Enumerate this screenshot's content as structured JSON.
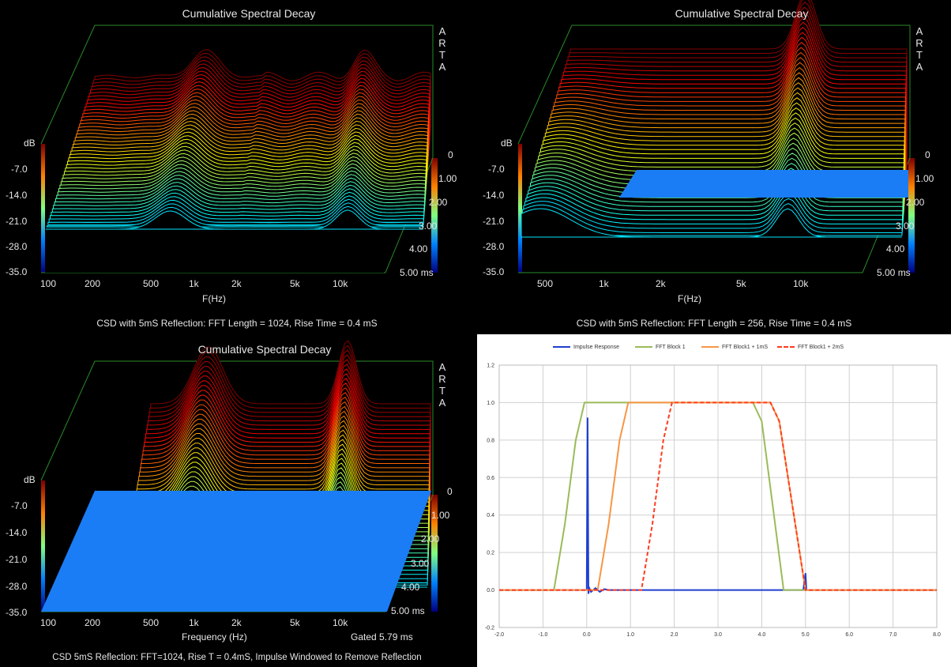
{
  "csd_title": "Cumulative Spectral Decay",
  "arta": [
    "A",
    "R",
    "T",
    "A"
  ],
  "db_label": "dB",
  "db_ticks": [
    "-7.0",
    "-14.0",
    "-21.0",
    "-28.0",
    "-35.0"
  ],
  "time_ticks": [
    "0",
    "1.00",
    "2.00",
    "3.00",
    "4.00",
    "5.00 ms"
  ],
  "panels": [
    {
      "caption": "CSD with 5mS Reflection: FFT Length = 1024, Rise Time = 0.4 mS",
      "xlabel": "F(Hz)",
      "freq_ticks": [
        "100",
        "200",
        "500",
        "1k",
        "2k",
        "5k",
        "10k"
      ]
    },
    {
      "caption": "CSD with 5mS Reflection: FFT Length = 256, Rise Time = 0.4 mS",
      "xlabel": "F(Hz)",
      "freq_ticks": [
        "500",
        "1k",
        "2k",
        "5k",
        "10k"
      ]
    },
    {
      "caption": "CSD 5mS Reflection: FFT=1024, Rise T = 0.4mS, Impulse Windowed to Remove Reflection",
      "xlabel": "Frequency (Hz)",
      "gated": "Gated 5.79 ms",
      "freq_ticks": [
        "100",
        "200",
        "500",
        "1k",
        "2k",
        "5k",
        "10k"
      ]
    }
  ],
  "chart_data": [
    {
      "type": "area",
      "title": "Cumulative Spectral Decay",
      "xlabel": "F(Hz)",
      "zlabel": "dB",
      "zlim": [
        -35,
        0
      ],
      "ylim_ms": [
        0,
        5
      ],
      "note": "3D waterfall"
    },
    {
      "type": "area",
      "title": "Cumulative Spectral Decay",
      "xlabel": "F(Hz)",
      "zlabel": "dB",
      "zlim": [
        -35,
        0
      ],
      "ylim_ms": [
        0,
        5
      ],
      "note": "3D waterfall"
    },
    {
      "type": "area",
      "title": "Cumulative Spectral Decay",
      "xlabel": "Frequency (Hz)",
      "zlabel": "dB",
      "zlim": [
        -35,
        0
      ],
      "ylim_ms": [
        0,
        5
      ],
      "note": "3D waterfall"
    },
    {
      "type": "line",
      "xlim": [
        -2.0,
        8.0
      ],
      "ylim": [
        -0.2,
        1.2
      ],
      "x_ticks": [
        "-2.0",
        "-1.0",
        "0.0",
        "1.0",
        "2.0",
        "3.0",
        "4.0",
        "5.0",
        "6.0",
        "7.0",
        "8.0"
      ],
      "y_ticks": [
        "1.2",
        "1.0",
        "0.8",
        "0.6",
        "0.4",
        "0.2",
        "0.0",
        "-0.2"
      ],
      "legend_position": "top",
      "series": [
        {
          "name": "Impulse Response",
          "color": "#1f3fd0",
          "dash": "solid",
          "x": [
            -2.0,
            0.0,
            0.02,
            0.04,
            0.06,
            0.1,
            0.2,
            0.3,
            0.4,
            0.5,
            1.0,
            2.0,
            3.0,
            4.0,
            4.95,
            5.0,
            5.02,
            5.05,
            6.0,
            8.0
          ],
          "y": [
            0.0,
            0.0,
            0.92,
            -0.02,
            0.01,
            -0.01,
            0.01,
            -0.01,
            0.005,
            0.0,
            0.0,
            0.0,
            0.0,
            0.0,
            0.0,
            0.09,
            0.0,
            0.0,
            0.0,
            0.0
          ]
        },
        {
          "name": "FFT Block 1",
          "color": "#9bbb59",
          "dash": "solid",
          "x": [
            -2.0,
            -0.75,
            -0.5,
            -0.25,
            -0.05,
            0.0,
            3.8,
            4.0,
            4.25,
            4.5,
            8.0
          ],
          "y": [
            0.0,
            0.0,
            0.35,
            0.8,
            1.0,
            1.0,
            1.0,
            0.9,
            0.45,
            0.0,
            0.0
          ]
        },
        {
          "name": "FFT Block1 + 1mS",
          "color": "#f79646",
          "dash": "solid",
          "x": [
            -2.0,
            0.25,
            0.5,
            0.75,
            0.95,
            1.0,
            4.2,
            4.4,
            4.7,
            5.0,
            8.0
          ],
          "y": [
            0.0,
            0.0,
            0.35,
            0.8,
            1.0,
            1.0,
            1.0,
            0.9,
            0.45,
            0.0,
            0.0
          ]
        },
        {
          "name": "FFT Block1 + 2mS",
          "color": "#ff3b1f",
          "dash": "dash",
          "x": [
            -2.0,
            1.25,
            1.5,
            1.75,
            1.95,
            2.0,
            4.2,
            4.4,
            4.7,
            5.0,
            8.0
          ],
          "y": [
            0.0,
            0.0,
            0.35,
            0.8,
            1.0,
            1.0,
            1.0,
            0.9,
            0.45,
            0.0,
            0.0
          ]
        }
      ]
    }
  ]
}
